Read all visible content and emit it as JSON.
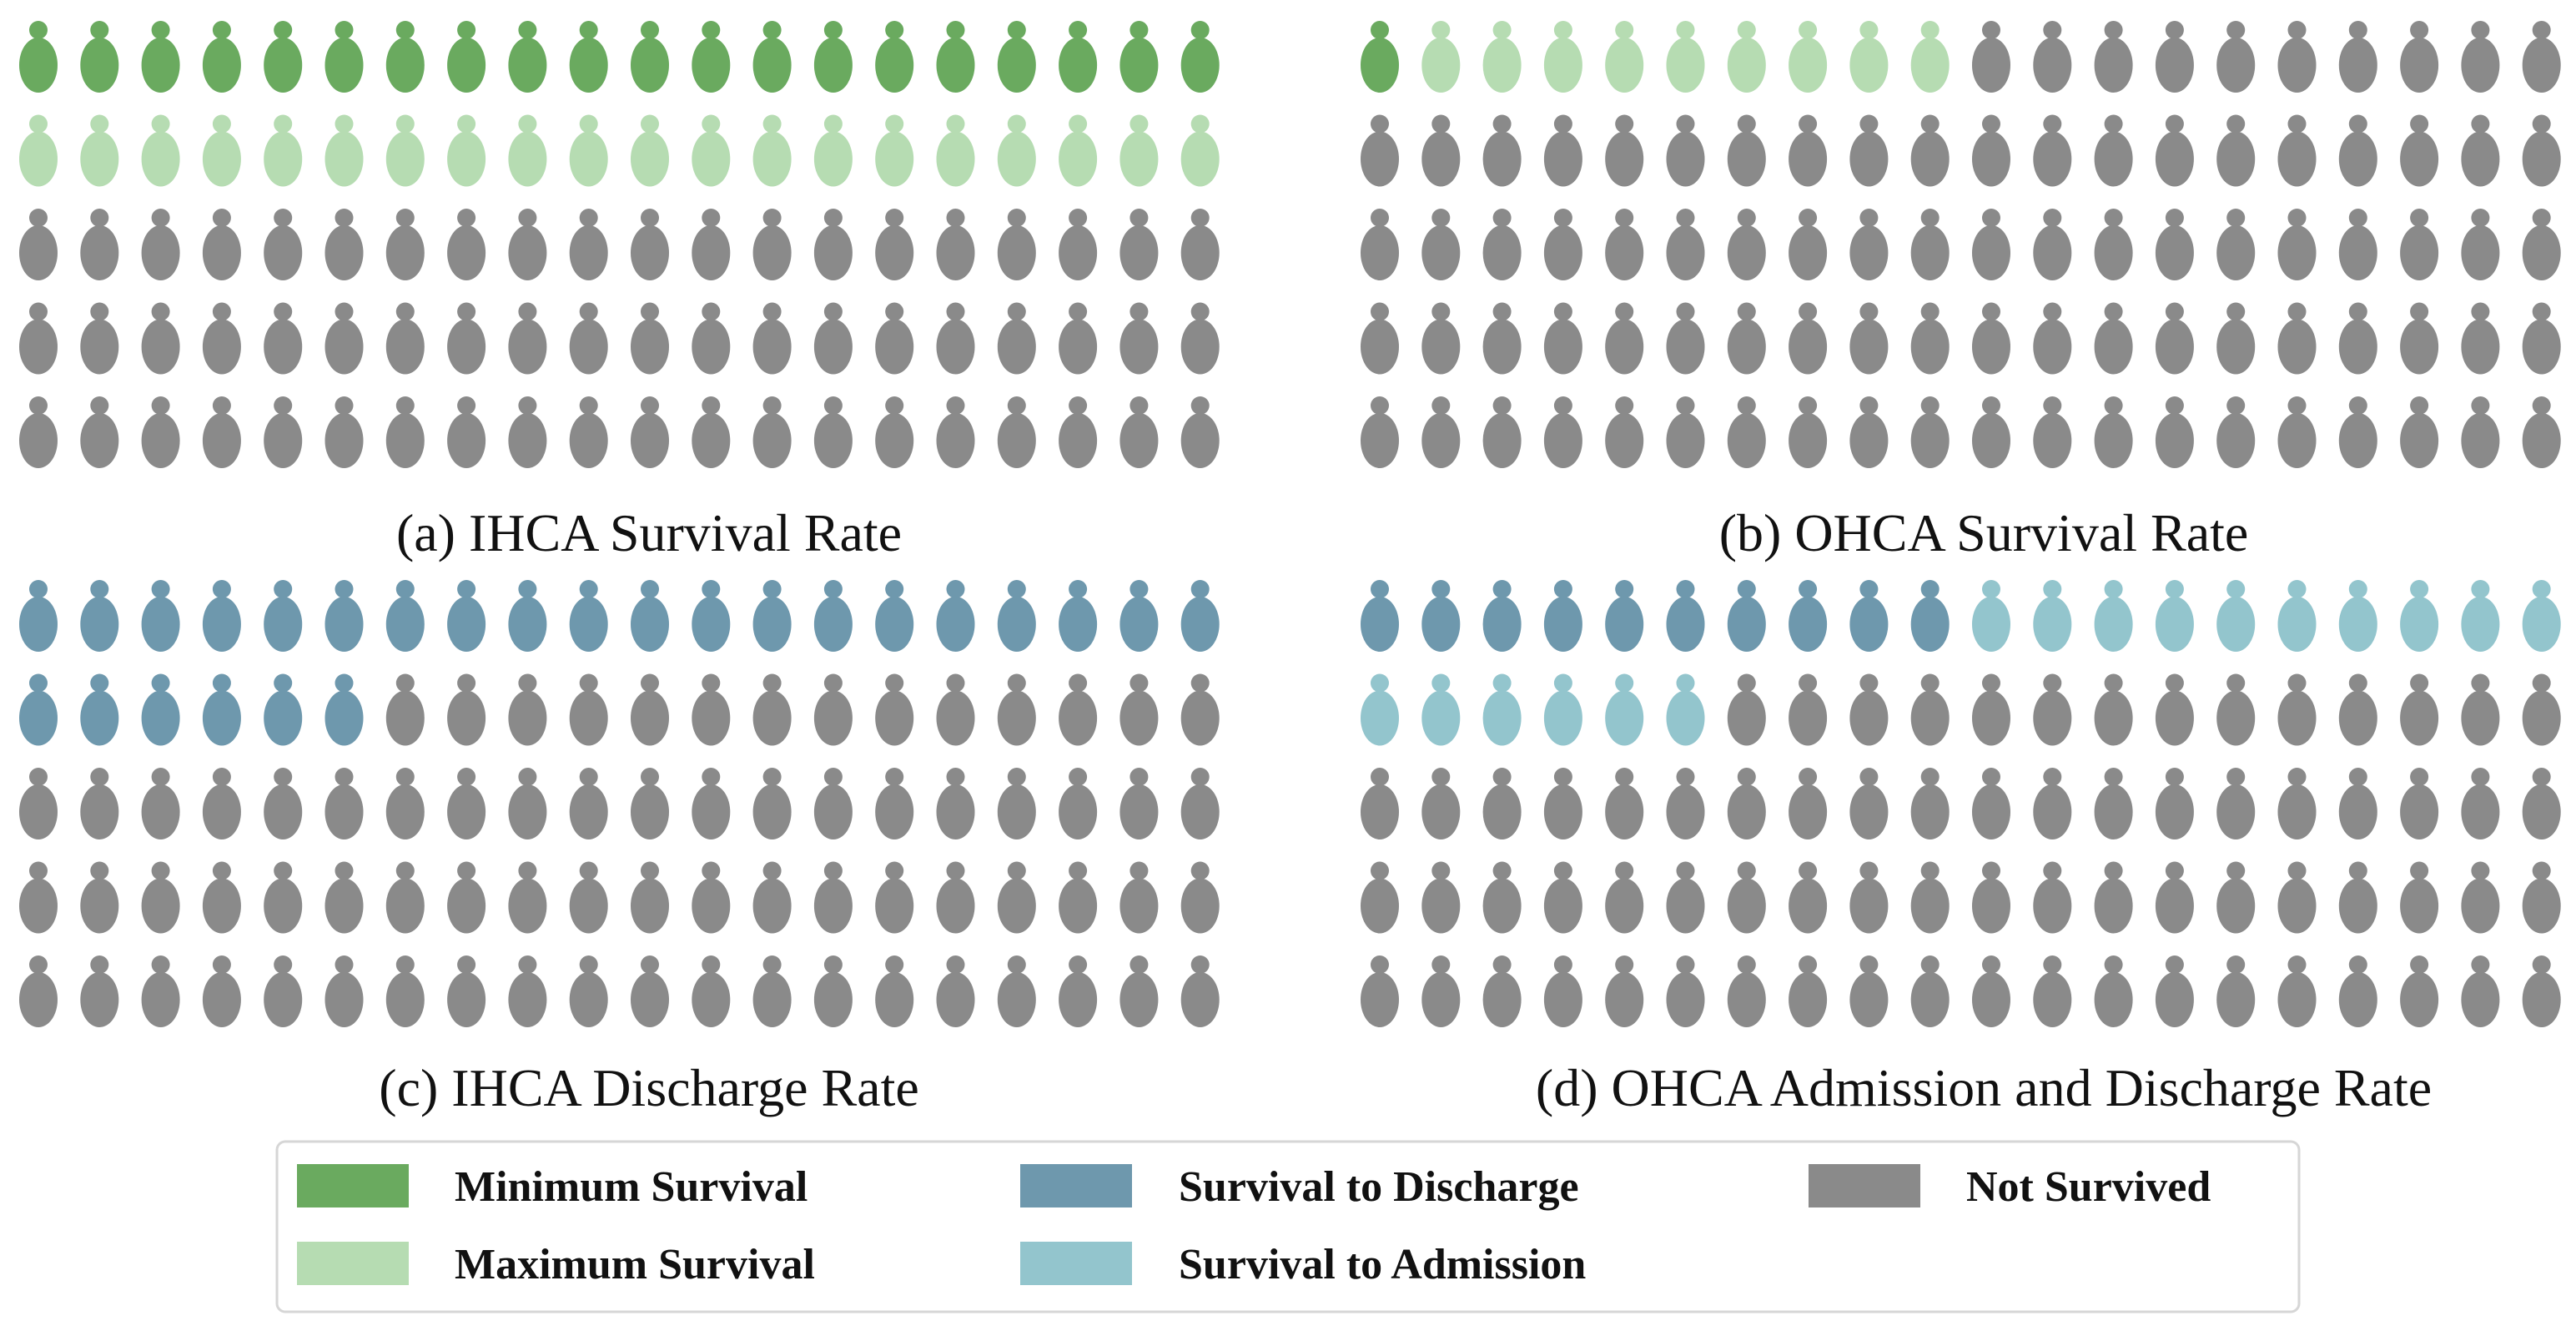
{
  "chart_data": [
    {
      "type": "waffle",
      "title": "(a) IHCA Survival Rate",
      "rows": 5,
      "cols": 20,
      "total": 100,
      "segments": [
        {
          "category": "Minimum Survival",
          "count": 20
        },
        {
          "category": "Maximum Survival",
          "count": 20
        },
        {
          "category": "Not Survived",
          "count": 60
        }
      ]
    },
    {
      "type": "waffle",
      "title": "(b) OHCA Survival Rate",
      "rows": 5,
      "cols": 20,
      "total": 100,
      "segments": [
        {
          "category": "Minimum Survival",
          "count": 1
        },
        {
          "category": "Maximum Survival",
          "count": 9
        },
        {
          "category": "Not Survived",
          "count": 90
        }
      ]
    },
    {
      "type": "waffle",
      "title": "(c) IHCA Discharge Rate",
      "rows": 5,
      "cols": 20,
      "total": 100,
      "segments": [
        {
          "category": "Survival to Discharge",
          "count": 26
        },
        {
          "category": "Not Survived",
          "count": 74
        }
      ]
    },
    {
      "type": "waffle",
      "title": "(d) OHCA Admission and Discharge Rate",
      "rows": 5,
      "cols": 20,
      "total": 100,
      "segments": [
        {
          "category": "Survival to Discharge",
          "count": 10
        },
        {
          "category": "Survival to Admission",
          "count": 16
        },
        {
          "category": "Not Survived",
          "count": 74
        }
      ]
    }
  ],
  "legend": {
    "placement": "bottom",
    "items": [
      {
        "label": "Minimum Survival",
        "color": "#6aaa5f"
      },
      {
        "label": "Survival to Discharge",
        "color": "#6e98ad"
      },
      {
        "label": "Not Survived",
        "color": "#8a8a8a"
      },
      {
        "label": "Maximum Survival",
        "color": "#b6dcb2"
      },
      {
        "label": "Survival to Admission",
        "color": "#93c5cd"
      }
    ]
  },
  "colors": {
    "Minimum Survival": "#6aaa5f",
    "Maximum Survival": "#b6dcb2",
    "Survival to Discharge": "#6e98ad",
    "Survival to Admission": "#93c5cd",
    "Not Survived": "#8a8a8a"
  },
  "icon": "person-icon"
}
